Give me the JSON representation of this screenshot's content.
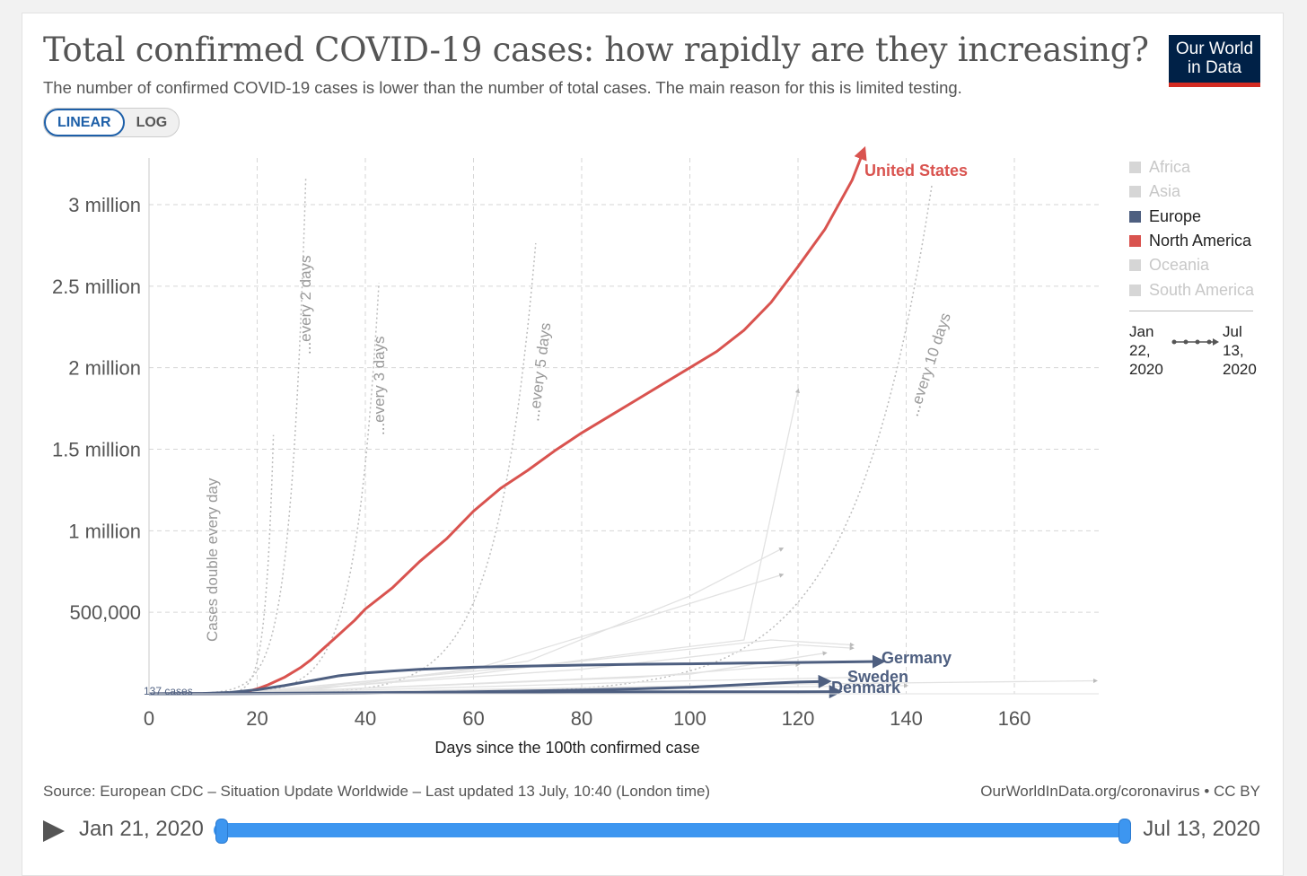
{
  "header": {
    "title": "Total confirmed COVID-19 cases: how rapidly are they increasing?",
    "subtitle": "The number of confirmed COVID-19 cases is lower than the number of total cases. The main reason for this is limited testing.",
    "logo_line1": "Our World",
    "logo_line2": "in Data"
  },
  "scale_toggle": {
    "linear": "LINEAR",
    "log": "LOG",
    "selected": "LINEAR"
  },
  "colors": {
    "north_america": "#d9534f",
    "europe": "#4e5f80",
    "inactive": "#d0d0d0",
    "guide": "#b8b8b8"
  },
  "legend": {
    "items": [
      {
        "label": "Africa",
        "color": "#d6d6d6",
        "active": false
      },
      {
        "label": "Asia",
        "color": "#d6d6d6",
        "active": false
      },
      {
        "label": "Europe",
        "color": "#4e5f80",
        "active": true
      },
      {
        "label": "North America",
        "color": "#d9534f",
        "active": true
      },
      {
        "label": "Oceania",
        "color": "#d6d6d6",
        "active": false
      },
      {
        "label": "South America",
        "color": "#d6d6d6",
        "active": false
      }
    ],
    "range_start": "Jan 22, 2020",
    "range_start_l1": "Jan",
    "range_start_l2": "22,",
    "range_start_l3": "2020",
    "range_end_l1": "Jul",
    "range_end_l2": "13,",
    "range_end_l3": "2020"
  },
  "chart_data": {
    "type": "line",
    "xlabel": "Days since the 100th confirmed case",
    "ylabel": "",
    "xlim": [
      0,
      175
    ],
    "ylim": [
      0,
      3300000
    ],
    "x_ticks": [
      "0",
      "20",
      "40",
      "60",
      "80",
      "100",
      "120",
      "140",
      "160"
    ],
    "y_ticks": [
      {
        "value": 500000,
        "label": "500,000"
      },
      {
        "value": 1000000,
        "label": "1 million"
      },
      {
        "value": 1500000,
        "label": "1.5 million"
      },
      {
        "value": 2000000,
        "label": "2 million"
      },
      {
        "value": 2500000,
        "label": "2.5 million"
      },
      {
        "value": 3000000,
        "label": "3 million"
      }
    ],
    "grid": true,
    "scale": "linear",
    "start_label": "137 cases",
    "guides": [
      {
        "label": "Cases double every day"
      },
      {
        "label": "...every 2 days"
      },
      {
        "label": "...every 3 days"
      },
      {
        "label": "...every 5 days"
      },
      {
        "label": "...every 10 days"
      }
    ],
    "series": [
      {
        "name": "United States",
        "x": [
          0,
          10,
          15,
          18,
          20,
          22,
          25,
          28,
          30,
          32,
          35,
          38,
          40,
          45,
          50,
          55,
          60,
          65,
          70,
          75,
          80,
          85,
          90,
          95,
          100,
          105,
          110,
          115,
          120,
          125,
          130,
          132
        ],
        "y": [
          0,
          500,
          3000,
          12000,
          30000,
          55000,
          100000,
          160000,
          210000,
          270000,
          360000,
          450000,
          520000,
          650000,
          810000,
          950000,
          1120000,
          1260000,
          1370000,
          1490000,
          1600000,
          1700000,
          1800000,
          1900000,
          2000000,
          2100000,
          2230000,
          2400000,
          2620000,
          2850000,
          3150000,
          3320000
        ]
      },
      {
        "name": "Germany",
        "x": [
          0,
          10,
          15,
          20,
          25,
          30,
          35,
          40,
          45,
          50,
          60,
          70,
          80,
          90,
          100,
          110,
          120,
          130,
          135
        ],
        "y": [
          0,
          2000,
          8000,
          25000,
          50000,
          80000,
          110000,
          128000,
          140000,
          150000,
          163000,
          170000,
          176000,
          181000,
          184000,
          188000,
          192000,
          196000,
          198000
        ]
      },
      {
        "name": "Sweden",
        "x": [
          0,
          20,
          40,
          60,
          70,
          80,
          90,
          100,
          110,
          115,
          120,
          125
        ],
        "y": [
          0,
          1000,
          4000,
          12000,
          17000,
          23000,
          30000,
          40000,
          56000,
          65000,
          72000,
          76000
        ]
      },
      {
        "name": "Denmark",
        "x": [
          0,
          20,
          40,
          60,
          80,
          100,
          120,
          127
        ],
        "y": [
          0,
          3000,
          7000,
          10000,
          11500,
          12300,
          12900,
          13100
        ]
      }
    ]
  },
  "footer": {
    "source": "Source: European CDC – Situation Update Worldwide – Last updated 13 July, 10:40 (London time)",
    "credit": "OurWorldInData.org/coronavirus • CC BY"
  },
  "timeline": {
    "start": "Jan 21, 2020",
    "end": "Jul 13, 2020"
  }
}
